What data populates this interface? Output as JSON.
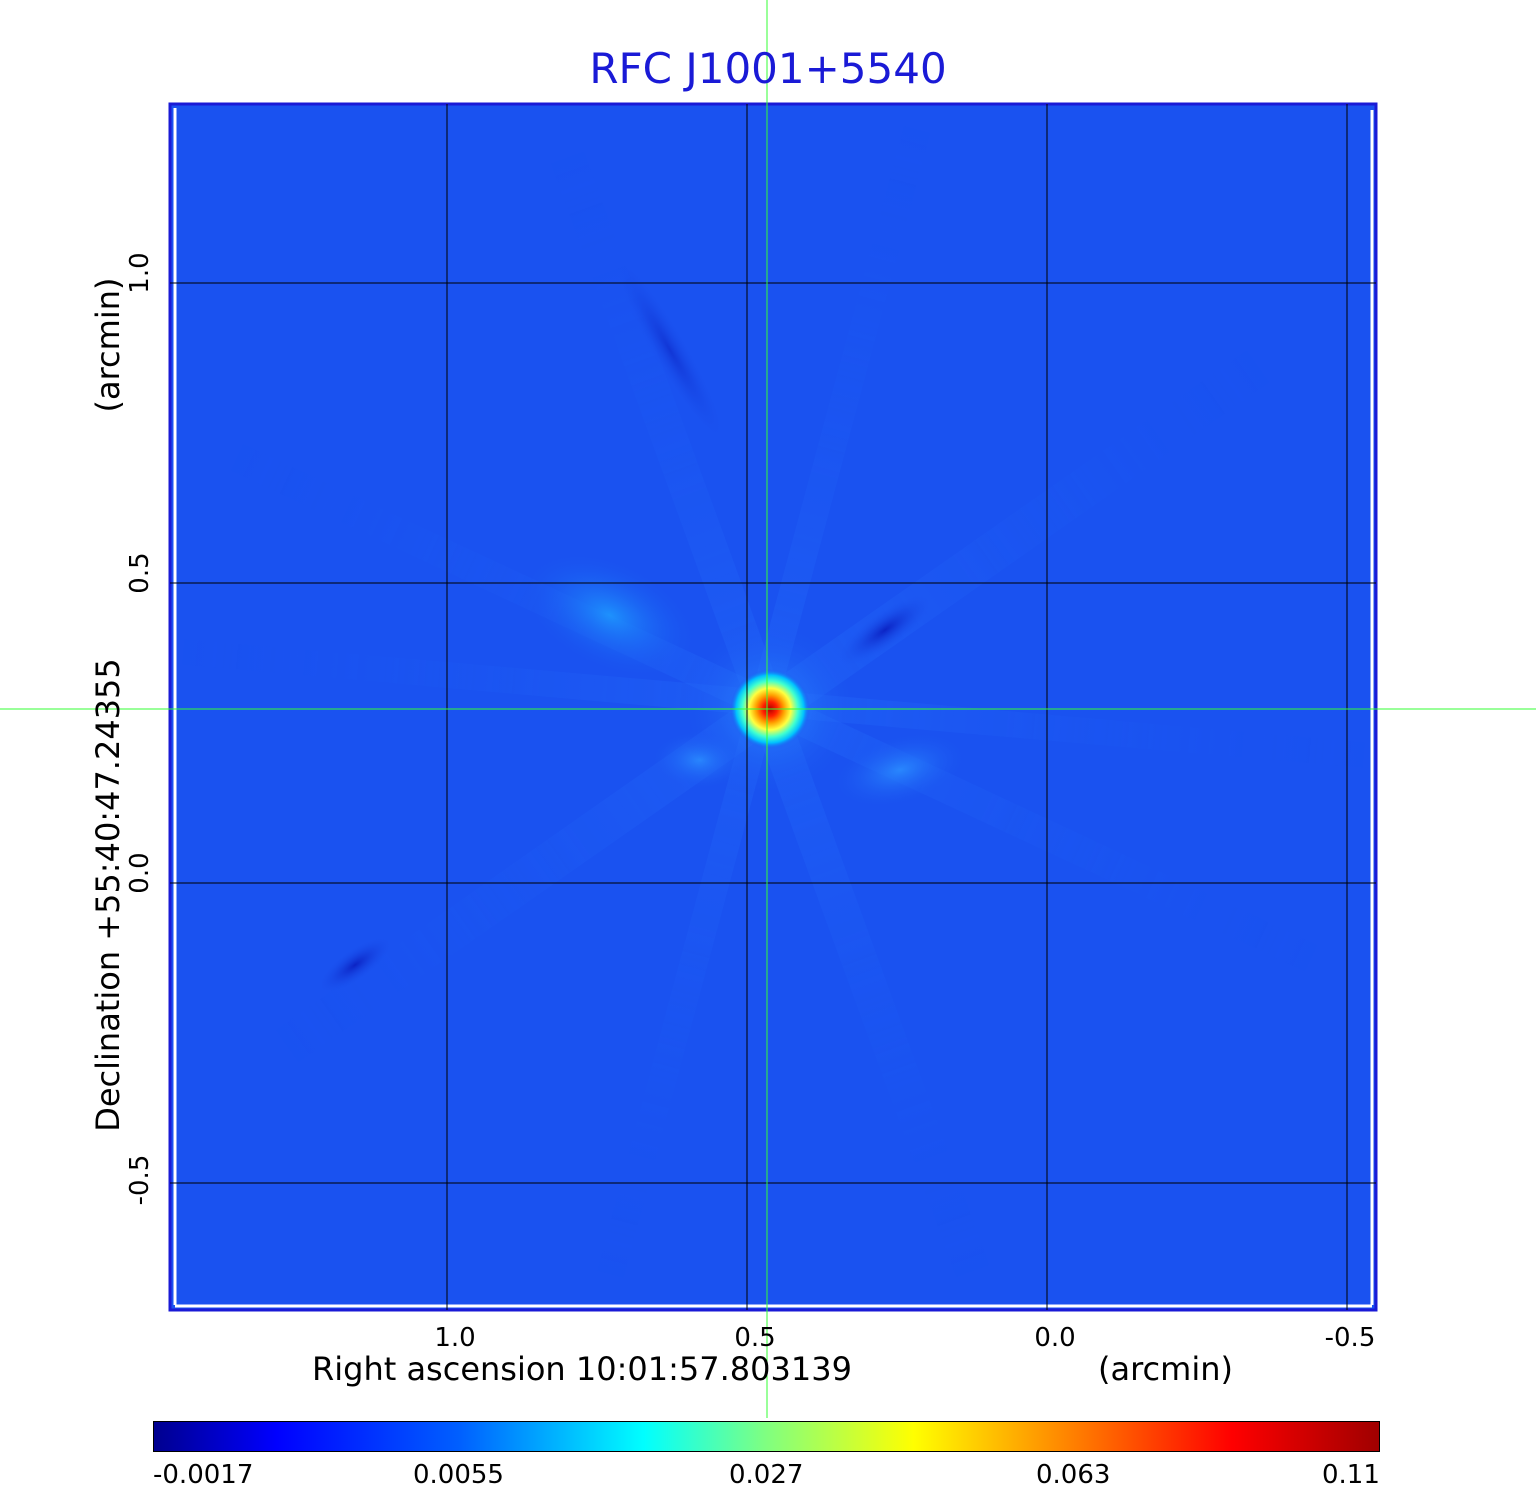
{
  "title": "RFC J1001+5540",
  "x_axis": {
    "label": "Right ascension  10:01:57.803139",
    "unit": "(arcmin)",
    "ticks": [
      "1.0",
      "0.5",
      "0.0",
      "-0.5"
    ]
  },
  "y_axis": {
    "label": "Declination  +55:40:47.24355",
    "unit": "(arcmin)",
    "ticks": [
      "1.0",
      "0.5",
      "0.0",
      "-0.5"
    ]
  },
  "colorbar": {
    "ticks": [
      "-0.0017",
      "0.0055",
      "0.027",
      "0.063",
      "0.11"
    ],
    "colormap": "jet"
  },
  "colors": {
    "title": "#1a1ad6",
    "background_field": "#1a52f0",
    "grid": "#000000",
    "crosshair": "#33ff33"
  }
}
